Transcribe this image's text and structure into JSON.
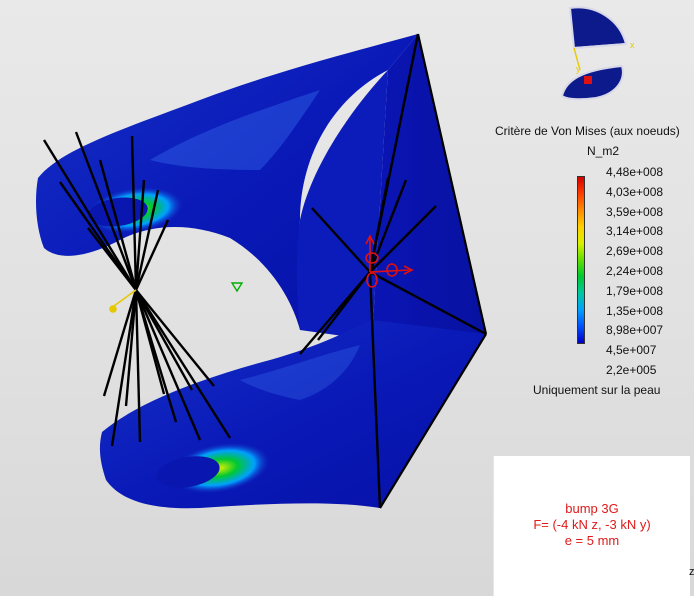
{
  "legend": {
    "title": "Critère de Von Mises (aux noeuds)",
    "unit": "N_m2",
    "values": [
      "4,48e+008",
      "4,03e+008",
      "3,59e+008",
      "3,14e+008",
      "2,69e+008",
      "2,24e+008",
      "1,79e+008",
      "1,35e+008",
      "8,98e+007",
      "4,5e+007",
      "2,2e+005"
    ],
    "footnote": "Uniquement sur la peau",
    "colors": [
      "#d40000",
      "#ff3d00",
      "#ff8a00",
      "#ffd000",
      "#d8f000",
      "#5fe000",
      "#00c832",
      "#00c8a0",
      "#00a0ff",
      "#0050ff",
      "#0000c8"
    ]
  },
  "annotation": {
    "line1": "bump 3G",
    "line2": "F= (-4 kN z, -3 kN y)",
    "line3": "e = 5 mm"
  },
  "compass": {
    "axis_x_label": "x",
    "axis_y_label": "y"
  },
  "corner_mark": "z",
  "colors": {
    "part_dark": "#0a0fb0",
    "part_light": "#1a3cd6",
    "beam_lines": "#000000",
    "load_symbol": "#e01010",
    "constraint_symbol": "#e6c800"
  }
}
